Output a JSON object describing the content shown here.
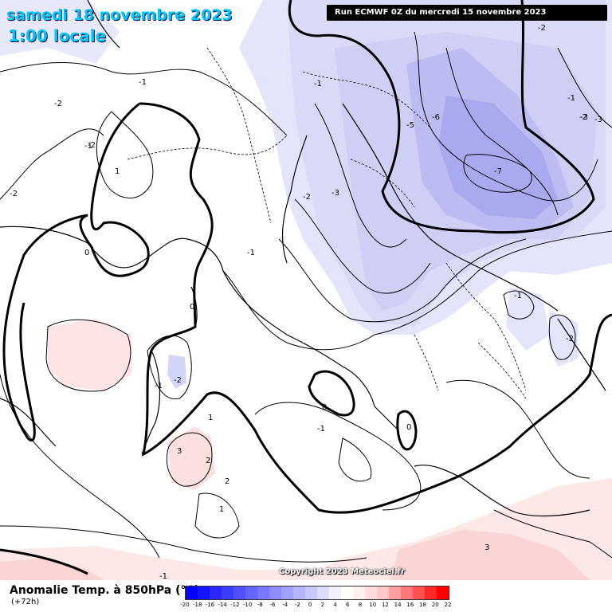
{
  "header": {
    "date": "samedi 18 novembre 2023",
    "time": "1:00 locale",
    "run": "Run ECMWF 0Z du mercredi 15 novembre 2023"
  },
  "copyright": "Copyright 2023 Meteociel.fr",
  "legend": {
    "title": "Anomalie Temp. à 850hPa (°C)",
    "lead": "(+72h)",
    "ticks": [
      "-20",
      "-18",
      "-16",
      "-14",
      "-12",
      "-10",
      "-8",
      "-6",
      "-4",
      "-2",
      "0",
      "2",
      "4",
      "6",
      "8",
      "10",
      "12",
      "14",
      "16",
      "18",
      "20",
      "22"
    ],
    "colors": [
      "#0000ff",
      "#1414ff",
      "#2828ff",
      "#3c3cff",
      "#5050ff",
      "#6464ff",
      "#7878ff",
      "#8c8cff",
      "#a0a0ff",
      "#b4b4ff",
      "#c8c8ff",
      "#dcdcff",
      "#f0f0ff",
      "#ffffff",
      "#fff0f0",
      "#ffdcdc",
      "#ffc8c8",
      "#ffa0a0",
      "#ff7878",
      "#ff5050",
      "#ff2828",
      "#ff0000"
    ]
  },
  "contour_labels": [
    "-1",
    "-2",
    "-2",
    "-1",
    "1",
    "-1",
    "-2",
    "-1",
    "-5",
    "-6",
    "-3",
    "-2",
    "-3",
    "-2",
    "-7",
    "-3",
    "-2",
    "-1",
    "0",
    "-1",
    "0",
    "-2",
    "-1",
    "-1",
    "-2",
    "1",
    "3",
    "2",
    "2",
    "1",
    "0",
    "0",
    "-1",
    "3"
  ],
  "colors": {
    "contour": "#000000",
    "coast": "#000000",
    "anomaly_neg_light": "#e8e8fb",
    "anomaly_neg_mid": "#d2d2f7",
    "anomaly_neg_strong": "#b0b0f2",
    "anomaly_pos_light": "#fde8e8",
    "anomaly_pos_mid": "#fbd0d0",
    "title": "#00c8ff"
  }
}
